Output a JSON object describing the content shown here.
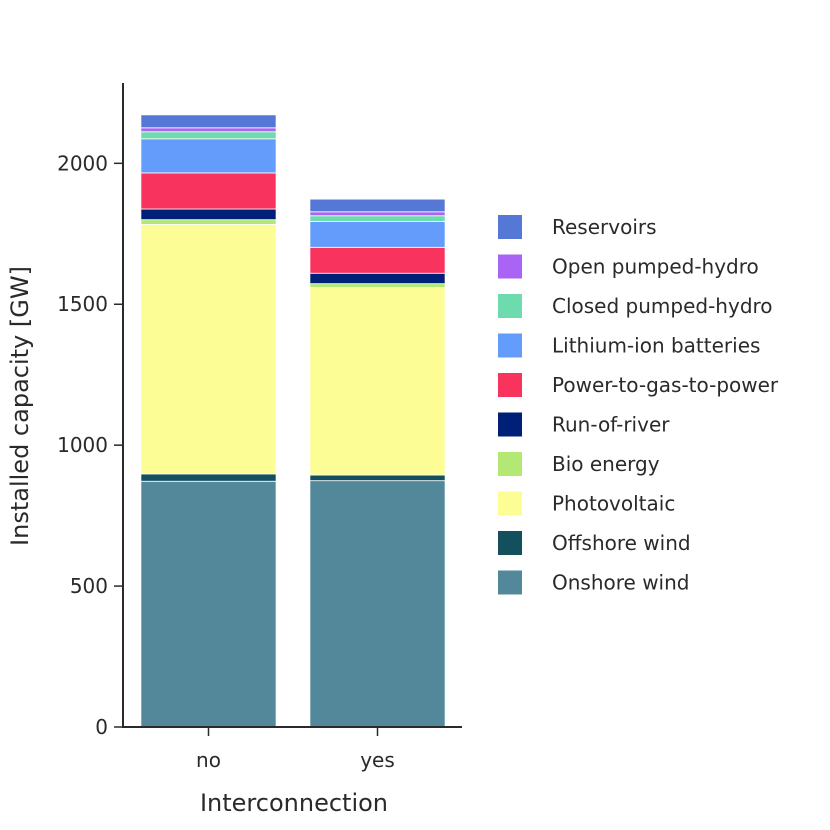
{
  "chart_data": {
    "type": "bar",
    "stacked": true,
    "categories": [
      "no",
      "yes"
    ],
    "xlabel": "Interconnection",
    "ylabel": "Installed capacity [GW]",
    "ylim": [
      0,
      2285
    ],
    "yticks": [
      0,
      500,
      1000,
      1500,
      2000
    ],
    "grid": false,
    "legend_position": "right",
    "series": [
      {
        "name": "Onshore wind",
        "color": "#52889A",
        "values": [
          872,
          874
        ]
      },
      {
        "name": "Offshore wind",
        "color": "#144F5E",
        "values": [
          26,
          20
        ]
      },
      {
        "name": "Photovoltaic",
        "color": "#FDFD96",
        "values": [
          885,
          665
        ]
      },
      {
        "name": "Bio energy",
        "color": "#B3E874",
        "values": [
          17,
          14
        ]
      },
      {
        "name": "Run-of-river",
        "color": "#001F76",
        "values": [
          38,
          37
        ]
      },
      {
        "name": "Power-to-gas-to-power",
        "color": "#F7335E",
        "values": [
          128,
          92
        ]
      },
      {
        "name": "Lithium-ion batteries",
        "color": "#649CFB",
        "values": [
          121,
          92
        ]
      },
      {
        "name": "Closed pumped-hydro",
        "color": "#6DDBAD",
        "values": [
          25,
          20
        ]
      },
      {
        "name": "Open pumped-hydro",
        "color": "#A964F5",
        "values": [
          14,
          14
        ]
      },
      {
        "name": "Reservoirs",
        "color": "#5577D5",
        "values": [
          46,
          45
        ]
      }
    ]
  }
}
